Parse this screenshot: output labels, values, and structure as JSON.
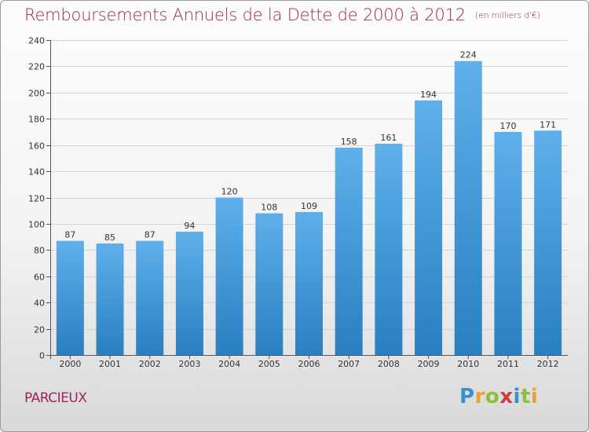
{
  "header": {
    "title": "Remboursements Annuels de la Dette de 2000 à 2012",
    "unit": "(en milliers d'€)"
  },
  "footer": {
    "commune": "PARCIEUX",
    "logo_text": "Proxiti"
  },
  "colors": {
    "bar_top": "#5fb0ea",
    "bar_bottom": "#2a7fc0",
    "title": "#9b2657"
  },
  "chart_data": {
    "type": "bar",
    "categories": [
      "2000",
      "2001",
      "2002",
      "2003",
      "2004",
      "2005",
      "2006",
      "2007",
      "2008",
      "2009",
      "2010",
      "2011",
      "2012"
    ],
    "values": [
      87,
      85,
      87,
      94,
      120,
      108,
      109,
      158,
      161,
      194,
      224,
      170,
      171
    ],
    "ylim": [
      0,
      240
    ],
    "yticks": [
      0,
      20,
      40,
      60,
      80,
      100,
      120,
      140,
      160,
      180,
      200,
      220,
      240
    ],
    "grid": true,
    "data_labels": true
  }
}
